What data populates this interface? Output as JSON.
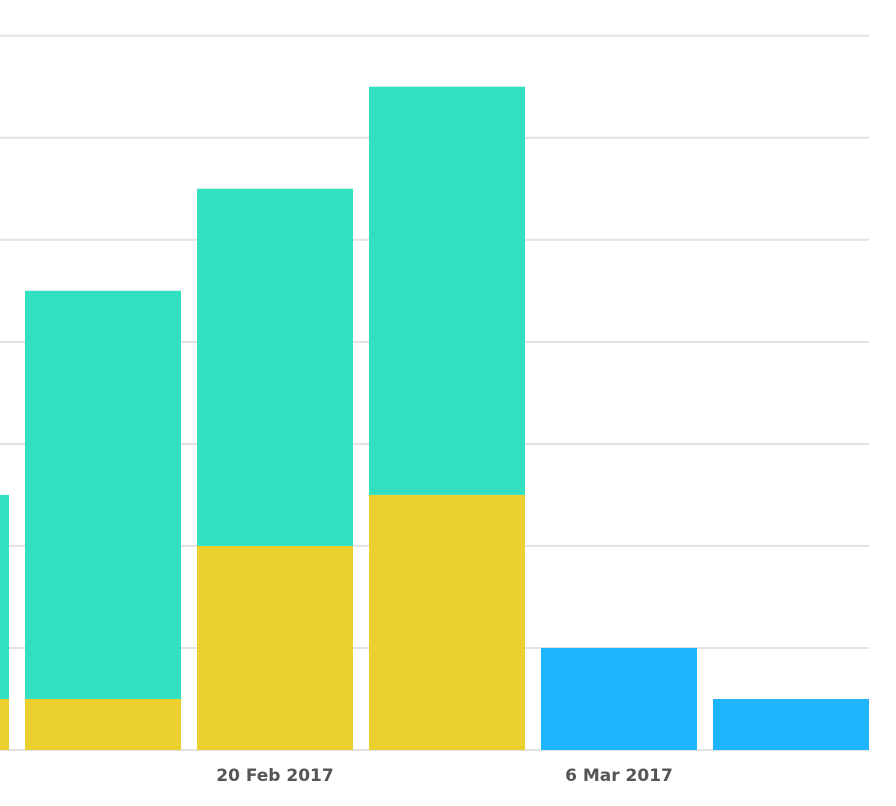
{
  "chart_data": {
    "type": "stacked_bar",
    "categories": [
      null,
      null,
      "20 Feb 2017",
      null,
      "6 Mar 2017",
      null
    ],
    "series": [
      {
        "color": "#ebd02f",
        "values": [
          0.5,
          0.5,
          2,
          2.5,
          0,
          0
        ]
      },
      {
        "color": "#31dfc1",
        "values": [
          2,
          4,
          3.5,
          4,
          0,
          0
        ]
      },
      {
        "color": "#1fb5fc",
        "values": [
          0,
          0,
          0,
          0,
          1,
          0.5
        ]
      }
    ],
    "ylim": [
      0,
      7.35
    ],
    "yticks": [
      0,
      1,
      2,
      3,
      4,
      5,
      6,
      7
    ],
    "grid": true
  }
}
